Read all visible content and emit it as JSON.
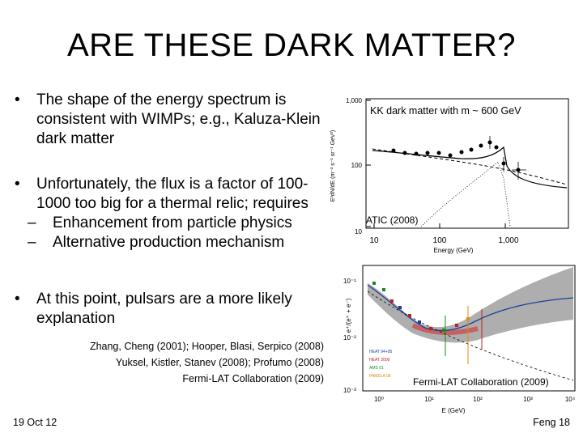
{
  "title": "ARE THESE DARK MATTER?",
  "bullets": [
    {
      "marker": "•",
      "text": "The shape of the energy spectrum is consistent with WIMPs; e.g., Kaluza-Klein dark matter"
    },
    {
      "marker": "•",
      "text": "Unfortunately, the flux is a factor of 100-1000 too big for a thermal relic; requires",
      "sub": [
        {
          "marker": "–",
          "text": "Enhancement from particle physics"
        },
        {
          "marker": "–",
          "text": "Alternative production mechanism"
        }
      ]
    },
    {
      "marker": "•",
      "text": "At this point, pulsars are a more likely explanation"
    }
  ],
  "references": [
    "Zhang, Cheng (2001); Hooper, Blasi, Serpico (2008)",
    "Yuksel, Kistler, Stanev (2008); Profumo (2008)",
    "Fermi-LAT Collaboration (2009)"
  ],
  "footer": {
    "date": "19 Oct 12",
    "page": "Feng 18"
  },
  "figures": {
    "top": {
      "annotation": "KK dark matter with m ~ 600 GeV",
      "source": "ATIC (2008)",
      "y_ticks": [
        "1,000",
        "100",
        "10"
      ],
      "x_ticks": [
        "10",
        "100",
        "1,000"
      ],
      "x_label": "Energy (GeV)",
      "y_label": "E³dN/dE (m⁻² s⁻¹ sr⁻¹ GeV²)"
    },
    "bottom": {
      "source": "Fermi-LAT Collaboration (2009)",
      "y_ticks": [
        "10⁻¹",
        "10⁻²",
        "10⁻³"
      ],
      "x_ticks": [
        "10⁰",
        "10¹",
        "10²",
        "10³",
        "10⁴"
      ],
      "x_label": "E  (GeV)",
      "y_label": "e⁺/(e⁺ + e⁻)",
      "legend": [
        "HEAT 94+95",
        "HEAT 2000",
        "AMS 01",
        "PAMELA 08"
      ]
    }
  }
}
